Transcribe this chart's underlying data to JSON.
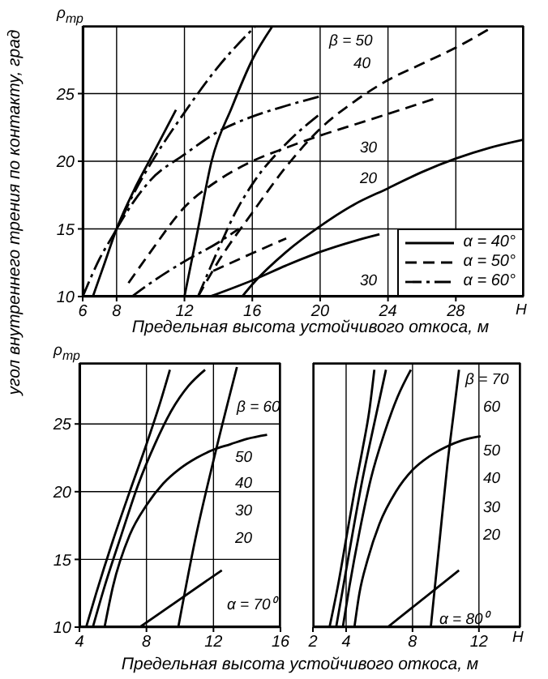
{
  "chart_data": [
    {
      "type": "line",
      "xlabel": "Предельная высота устойчивого откоса, м",
      "ylabel": "угол внутреннего трения по контакту, град",
      "xlim": [
        6,
        32
      ],
      "xticks": [
        6,
        8,
        12,
        16,
        20,
        24,
        28
      ],
      "ylim": [
        10,
        30
      ],
      "yticks": [
        10,
        15,
        20,
        25
      ],
      "grid": true,
      "legend": "bottom right",
      "series": [
        {
          "name": "α = 40°",
          "color": "#000000",
          "line_style": "solid",
          "x": [
            15.4,
            16,
            18,
            20,
            22,
            24,
            26,
            28,
            30,
            32
          ],
          "values": [
            10,
            10.9,
            13.3,
            15.2,
            16.8,
            18,
            19.2,
            20.2,
            21,
            21.6
          ]
        },
        {
          "name": "α = 50°",
          "color": "#000000",
          "line_style": "dashed",
          "x": [
            12.8,
            14,
            16,
            18,
            20,
            22,
            24,
            26,
            28,
            30
          ],
          "values": [
            10,
            12.6,
            16.2,
            19.6,
            22.4,
            24.4,
            26,
            27.2,
            28.4,
            29.8
          ]
        },
        {
          "name": "α = 60°",
          "color": "#000000",
          "line_style": "dashdot",
          "x": [
            8,
            9,
            10,
            12,
            14,
            16,
            18,
            20
          ],
          "values": [
            15,
            17,
            18.6,
            20.5,
            22.2,
            23.3,
            24.1,
            24.8
          ]
        },
        {
          "color": "#000000",
          "line_style": "solid",
          "x": [
            13.5,
            16,
            18,
            20,
            22,
            23.5
          ],
          "values": [
            10,
            11.2,
            12.3,
            13.3,
            14.1,
            14.6
          ]
        },
        {
          "color": "#000000",
          "line_style": "solid",
          "x": [
            12,
            12.8,
            13.6,
            14.8,
            16,
            17.2
          ],
          "values": [
            10,
            15,
            20,
            24,
            27.5,
            30
          ]
        },
        {
          "color": "#000000",
          "line_style": "solid",
          "x": [
            6.6,
            7.3,
            8,
            9,
            10,
            11.5
          ],
          "values": [
            10,
            12.5,
            15,
            17.8,
            20.2,
            23.8
          ]
        },
        {
          "color": "#000000",
          "line_style": "dashed",
          "x": [
            8.7,
            10,
            12,
            14,
            16,
            18,
            20,
            22,
            24,
            26.7
          ],
          "values": [
            11,
            13.3,
            16.6,
            18.6,
            20,
            21,
            21.9,
            22.7,
            23.5,
            24.6
          ]
        },
        {
          "color": "#000000",
          "line_style": "dashed",
          "x": [
            13.7,
            16,
            18
          ],
          "values": [
            11.9,
            13.2,
            14.3
          ]
        },
        {
          "color": "#000000",
          "line_style": "dashdot",
          "x": [
            6,
            7,
            8,
            9,
            10,
            12,
            14,
            16.2
          ],
          "values": [
            10,
            12.8,
            15,
            17.6,
            19.8,
            23.6,
            27,
            30
          ]
        },
        {
          "color": "#000000",
          "line_style": "dashdot",
          "x": [
            8.9,
            10,
            12,
            14,
            15.2
          ],
          "values": [
            10,
            11,
            12.6,
            14,
            15
          ]
        },
        {
          "color": "#000000",
          "line_style": "dashdot",
          "x": [
            12.8,
            14,
            15,
            16,
            18,
            20
          ],
          "values": [
            10,
            13.5,
            16.2,
            18.3,
            21.3,
            23.5
          ]
        }
      ],
      "annotations": [
        "ρ$_{тр}$",
        "H",
        "β = 50",
        "40",
        "30",
        "20",
        "30"
      ]
    },
    {
      "type": "line",
      "xlabel": "Предельная высота устойчивого откоса, м",
      "xlim": [
        4,
        16
      ],
      "xticks": [
        4,
        8,
        12,
        16
      ],
      "ylim": [
        10,
        29.5
      ],
      "yticks": [
        10,
        15,
        20,
        25
      ],
      "grid": true,
      "series": [
        {
          "color": "#000000",
          "line_style": "solid",
          "x": [
            4.4,
            5,
            6,
            7,
            8,
            8.8,
            9.4
          ],
          "values": [
            10,
            12.5,
            16.4,
            20,
            23.5,
            26.5,
            29
          ]
        },
        {
          "color": "#000000",
          "line_style": "solid",
          "x": [
            4.8,
            5.5,
            6.5,
            7.5,
            8.5,
            9.5,
            10.5,
            11.5
          ],
          "values": [
            10,
            13,
            16.8,
            20.5,
            23.5,
            26,
            27.8,
            29
          ]
        },
        {
          "color": "#000000",
          "line_style": "solid",
          "x": [
            5.5,
            6,
            7,
            8,
            9,
            10,
            11,
            12,
            13,
            14,
            15.2
          ],
          "values": [
            10,
            13,
            16.8,
            19,
            20.6,
            21.7,
            22.5,
            23.1,
            23.5,
            23.9,
            24.2
          ]
        },
        {
          "color": "#000000",
          "line_style": "solid",
          "x": [
            9.9,
            10.9,
            12,
            13.4
          ],
          "values": [
            10,
            16.4,
            22.3,
            29.2
          ]
        },
        {
          "color": "#000000",
          "line_style": "solid",
          "x": [
            7.6,
            12.5
          ],
          "values": [
            10,
            14.2
          ]
        }
      ],
      "annotations": [
        "ρ$_{тр}$",
        "β = 60",
        "50",
        "40",
        "30",
        "20",
        "α = 70⁰"
      ]
    },
    {
      "type": "line",
      "xlim": [
        2,
        14.5
      ],
      "xticks": [
        2,
        4,
        8,
        12
      ],
      "ylim": [
        10,
        29.5
      ],
      "yticks": [
        10,
        15,
        20,
        25
      ],
      "grid": true,
      "tick_labels": "x",
      "series": [
        {
          "color": "#000000",
          "line_style": "solid",
          "x": [
            3,
            3.5,
            4,
            4.5,
            5,
            5.4,
            5.7
          ],
          "values": [
            10,
            13,
            16.5,
            20,
            23.2,
            26,
            29
          ]
        },
        {
          "color": "#000000",
          "line_style": "solid",
          "x": [
            3.4,
            3.9,
            4.4,
            5,
            5.6,
            6.4
          ],
          "values": [
            10,
            13.5,
            17,
            21,
            24.5,
            29
          ]
        },
        {
          "color": "#000000",
          "line_style": "solid",
          "x": [
            3.8,
            4.2,
            4.8,
            5.5,
            6.3,
            7.1,
            7.9
          ],
          "values": [
            10,
            13,
            17,
            21,
            24.3,
            27,
            29
          ]
        },
        {
          "color": "#000000",
          "line_style": "solid",
          "x": [
            4.5,
            4.8,
            5.3,
            6,
            7,
            8,
            9,
            10,
            11,
            12.1
          ],
          "values": [
            10,
            12.5,
            15,
            17.6,
            20,
            21.6,
            22.6,
            23.3,
            23.8,
            24.1
          ]
        },
        {
          "color": "#000000",
          "line_style": "solid",
          "x": [
            9.1,
            9.6,
            10.1,
            10.5,
            10.8
          ],
          "values": [
            10,
            16,
            22,
            26,
            29
          ]
        },
        {
          "color": "#000000",
          "line_style": "solid",
          "x": [
            6.5,
            10.8
          ],
          "values": [
            10,
            14.2
          ]
        }
      ],
      "annotations": [
        "H",
        "β = 70",
        "60",
        "50",
        "40",
        "30",
        "20",
        "α = 80⁰"
      ]
    }
  ]
}
